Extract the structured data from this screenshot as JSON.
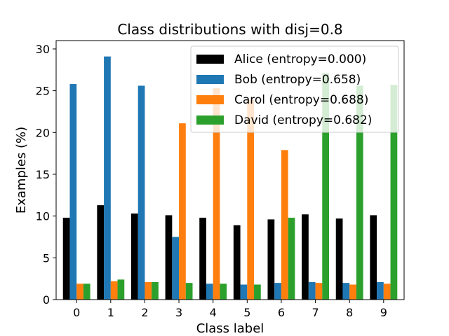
{
  "chart_data": {
    "type": "bar",
    "title": "Class distributions with disj=0.8",
    "xlabel": "Class label",
    "ylabel": "Examples (%)",
    "categories": [
      "0",
      "1",
      "2",
      "3",
      "4",
      "5",
      "6",
      "7",
      "8",
      "9"
    ],
    "ylim": [
      0,
      31
    ],
    "yticks": [
      "0",
      "5",
      "10",
      "15",
      "20",
      "25",
      "30"
    ],
    "grid": false,
    "legend_position": "top-right",
    "series": [
      {
        "name": "Alice (entropy=0.000)",
        "color": "#000000",
        "values": [
          9.8,
          11.3,
          10.3,
          10.1,
          9.8,
          8.9,
          9.6,
          10.2,
          9.7,
          10.1
        ]
      },
      {
        "name": "Bob (entropy=0.658)",
        "color": "#1f77b4",
        "values": [
          25.8,
          29.1,
          25.6,
          7.5,
          1.9,
          1.8,
          2.0,
          2.1,
          2.0,
          2.1
        ]
      },
      {
        "name": "Carol (entropy=0.688)",
        "color": "#ff7f0e",
        "values": [
          1.9,
          2.2,
          2.1,
          21.1,
          25.3,
          23.9,
          17.9,
          2.0,
          1.8,
          1.9
        ]
      },
      {
        "name": "David (entropy=0.682)",
        "color": "#2ca02c",
        "values": [
          1.9,
          2.4,
          2.1,
          2.0,
          1.9,
          1.8,
          9.8,
          27.1,
          25.6,
          25.7
        ]
      }
    ]
  }
}
